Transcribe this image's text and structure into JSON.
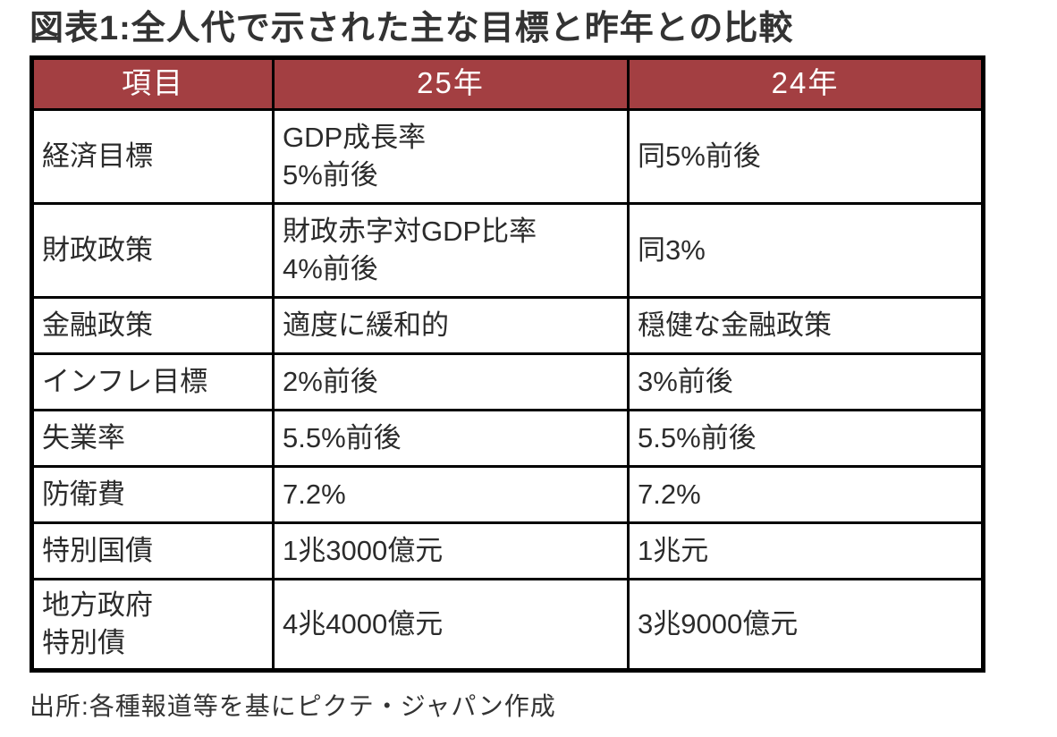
{
  "title": "図表1:全人代で示された主な目標と昨年との比較",
  "table": {
    "headers": [
      "項目",
      "25年",
      "24年"
    ],
    "rows": [
      {
        "item": "経済目標",
        "y25": "GDP成長率\n5%前後",
        "y24": "同5%前後"
      },
      {
        "item": "財政政策",
        "y25": "財政赤字対GDP比率\n4%前後",
        "y24": "同3%"
      },
      {
        "item": "金融政策",
        "y25": "適度に緩和的",
        "y24": "穏健な金融政策"
      },
      {
        "item": "インフレ目標",
        "y25": "2%前後",
        "y24": "3%前後"
      },
      {
        "item": "失業率",
        "y25": "5.5%前後",
        "y24": "5.5%前後"
      },
      {
        "item": "防衛費",
        "y25": "7.2%",
        "y24": "7.2%"
      },
      {
        "item": "特別国債",
        "y25": "1兆3000億元",
        "y24": "1兆元"
      },
      {
        "item": "地方政府\n特別債",
        "y25": "4兆4000億元",
        "y24": "3兆9000億元"
      }
    ]
  },
  "source": "出所:各種報道等を基にピクテ・ジャパン作成",
  "colors": {
    "header_bg": "#a33f42",
    "header_text": "#ffffff",
    "border": "#000000",
    "body_text": "#2b2b2b"
  },
  "chart_data": {
    "type": "table",
    "title": "図表1:全人代で示された主な目標と昨年との比較",
    "columns": [
      "項目",
      "25年",
      "24年"
    ],
    "rows": [
      [
        "経済目標",
        "GDP成長率 5%前後",
        "同5%前後"
      ],
      [
        "財政政策",
        "財政赤字対GDP比率 4%前後",
        "同3%"
      ],
      [
        "金融政策",
        "適度に緩和的",
        "穏健な金融政策"
      ],
      [
        "インフレ目標",
        "2%前後",
        "3%前後"
      ],
      [
        "失業率",
        "5.5%前後",
        "5.5%前後"
      ],
      [
        "防衛費",
        "7.2%",
        "7.2%"
      ],
      [
        "特別国債",
        "1兆3000億元",
        "1兆元"
      ],
      [
        "地方政府特別債",
        "4兆4000億元",
        "3兆9000億元"
      ]
    ],
    "source": "出所:各種報道等を基にピクテ・ジャパン作成",
    "layout": {
      "header_style": "brick-red band, white centered text",
      "grid": "thick black borders"
    }
  }
}
